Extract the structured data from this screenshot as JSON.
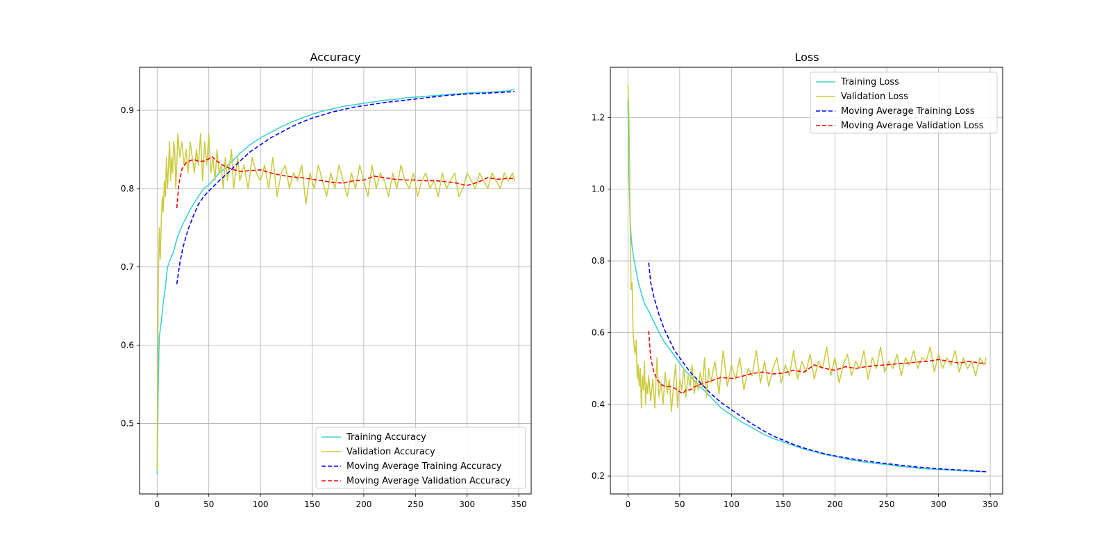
{
  "chart_data": [
    {
      "type": "line",
      "title": "Accuracy",
      "xlabel": "",
      "ylabel": "",
      "xlim": [
        -17,
        362
      ],
      "ylim": [
        0.41,
        0.955
      ],
      "xticks": [
        0,
        50,
        100,
        150,
        200,
        250,
        300,
        350
      ],
      "xtick_labels": [
        "0",
        "50",
        "100",
        "150",
        "200",
        "250",
        "300",
        "350"
      ],
      "yticks": [
        0.5,
        0.6,
        0.7,
        0.8,
        0.9
      ],
      "ytick_labels": [
        "0.5",
        "0.6",
        "0.7",
        "0.8",
        "0.9"
      ],
      "grid": true,
      "legend_position": "lower-right",
      "series": [
        {
          "name": "Training Accuracy",
          "color": "#40d0d0",
          "dash": "solid",
          "x": [
            0,
            1,
            2,
            4,
            6,
            8,
            10,
            13,
            16,
            20,
            25,
            30,
            35,
            40,
            45,
            50,
            55,
            60,
            65,
            70,
            75,
            80,
            90,
            100,
            110,
            120,
            130,
            140,
            150,
            160,
            170,
            180,
            190,
            200,
            210,
            220,
            230,
            240,
            250,
            260,
            270,
            280,
            290,
            300,
            310,
            320,
            330,
            340,
            346
          ],
          "y": [
            0.435,
            0.54,
            0.61,
            0.63,
            0.655,
            0.675,
            0.7,
            0.71,
            0.72,
            0.74,
            0.755,
            0.768,
            0.78,
            0.79,
            0.8,
            0.805,
            0.812,
            0.82,
            0.825,
            0.832,
            0.838,
            0.845,
            0.856,
            0.865,
            0.872,
            0.879,
            0.885,
            0.89,
            0.895,
            0.899,
            0.902,
            0.905,
            0.907,
            0.909,
            0.911,
            0.913,
            0.914,
            0.916,
            0.917,
            0.918,
            0.919,
            0.92,
            0.921,
            0.922,
            0.923,
            0.923,
            0.924,
            0.925,
            0.927
          ]
        },
        {
          "name": "Validation Accuracy",
          "color": "#cccc44",
          "dash": "solid",
          "x": [
            0,
            1,
            2,
            3,
            4,
            5,
            6,
            7,
            8,
            9,
            10,
            11,
            12,
            13,
            14,
            15,
            16,
            17,
            18,
            19,
            20,
            22,
            24,
            26,
            28,
            30,
            32,
            34,
            36,
            38,
            40,
            42,
            44,
            46,
            48,
            50,
            52,
            54,
            56,
            58,
            60,
            62,
            64,
            66,
            68,
            70,
            72,
            74,
            76,
            78,
            80,
            84,
            88,
            92,
            96,
            100,
            104,
            108,
            112,
            116,
            120,
            124,
            128,
            132,
            136,
            140,
            144,
            148,
            152,
            156,
            160,
            164,
            168,
            172,
            176,
            180,
            184,
            188,
            192,
            196,
            200,
            204,
            208,
            212,
            216,
            220,
            224,
            228,
            232,
            236,
            240,
            244,
            248,
            252,
            256,
            260,
            264,
            268,
            272,
            276,
            280,
            284,
            288,
            292,
            296,
            300,
            304,
            308,
            312,
            316,
            320,
            324,
            328,
            332,
            336,
            340,
            344,
            346
          ],
          "y": [
            0.44,
            0.66,
            0.75,
            0.71,
            0.76,
            0.79,
            0.77,
            0.81,
            0.79,
            0.84,
            0.8,
            0.83,
            0.86,
            0.81,
            0.84,
            0.82,
            0.86,
            0.85,
            0.8,
            0.83,
            0.87,
            0.84,
            0.86,
            0.83,
            0.85,
            0.82,
            0.86,
            0.84,
            0.82,
            0.85,
            0.83,
            0.87,
            0.81,
            0.86,
            0.83,
            0.87,
            0.82,
            0.84,
            0.81,
            0.85,
            0.82,
            0.83,
            0.8,
            0.84,
            0.81,
            0.83,
            0.85,
            0.8,
            0.82,
            0.84,
            0.81,
            0.83,
            0.8,
            0.84,
            0.82,
            0.81,
            0.83,
            0.8,
            0.84,
            0.79,
            0.82,
            0.83,
            0.8,
            0.82,
            0.81,
            0.83,
            0.78,
            0.82,
            0.8,
            0.83,
            0.81,
            0.79,
            0.82,
            0.8,
            0.83,
            0.81,
            0.79,
            0.82,
            0.8,
            0.83,
            0.81,
            0.79,
            0.83,
            0.8,
            0.82,
            0.81,
            0.79,
            0.82,
            0.8,
            0.83,
            0.81,
            0.8,
            0.82,
            0.79,
            0.81,
            0.82,
            0.8,
            0.81,
            0.79,
            0.82,
            0.8,
            0.81,
            0.82,
            0.79,
            0.8,
            0.82,
            0.81,
            0.8,
            0.82,
            0.81,
            0.8,
            0.82,
            0.81,
            0.8,
            0.82,
            0.81,
            0.82,
            0.81
          ]
        },
        {
          "name": "Moving Average Training Accuracy",
          "color": "#0000ff",
          "dash": "dashed",
          "x": [
            19,
            22,
            25,
            30,
            35,
            40,
            45,
            50,
            60,
            70,
            80,
            90,
            100,
            110,
            120,
            130,
            140,
            150,
            160,
            170,
            180,
            190,
            200,
            220,
            240,
            260,
            280,
            300,
            320,
            346
          ],
          "y": [
            0.678,
            0.705,
            0.725,
            0.748,
            0.765,
            0.78,
            0.79,
            0.797,
            0.81,
            0.822,
            0.835,
            0.847,
            0.856,
            0.865,
            0.872,
            0.879,
            0.885,
            0.89,
            0.894,
            0.898,
            0.901,
            0.904,
            0.906,
            0.91,
            0.913,
            0.916,
            0.919,
            0.921,
            0.922,
            0.924
          ]
        },
        {
          "name": "Moving Average Validation Accuracy",
          "color": "#ff0000",
          "dash": "dashed",
          "x": [
            19,
            21,
            24,
            28,
            32,
            36,
            40,
            45,
            50,
            53,
            56,
            60,
            65,
            70,
            75,
            80,
            90,
            100,
            110,
            120,
            130,
            140,
            150,
            160,
            170,
            180,
            190,
            200,
            210,
            220,
            230,
            240,
            250,
            260,
            270,
            280,
            290,
            300,
            310,
            320,
            330,
            340,
            346
          ],
          "y": [
            0.775,
            0.805,
            0.825,
            0.833,
            0.836,
            0.837,
            0.835,
            0.835,
            0.838,
            0.841,
            0.837,
            0.833,
            0.829,
            0.826,
            0.824,
            0.822,
            0.823,
            0.824,
            0.82,
            0.817,
            0.815,
            0.814,
            0.812,
            0.81,
            0.808,
            0.807,
            0.81,
            0.811,
            0.816,
            0.814,
            0.812,
            0.811,
            0.811,
            0.81,
            0.81,
            0.809,
            0.807,
            0.804,
            0.808,
            0.814,
            0.812,
            0.813,
            0.813
          ]
        }
      ]
    },
    {
      "type": "line",
      "title": "Loss",
      "xlabel": "",
      "ylabel": "",
      "xlim": [
        -17,
        362
      ],
      "ylim": [
        0.15,
        1.34
      ],
      "xticks": [
        0,
        50,
        100,
        150,
        200,
        250,
        300,
        350
      ],
      "xtick_labels": [
        "0",
        "50",
        "100",
        "150",
        "200",
        "250",
        "300",
        "350"
      ],
      "yticks": [
        0.2,
        0.4,
        0.6,
        0.8,
        1.0,
        1.2
      ],
      "ytick_labels": [
        "0.2",
        "0.4",
        "0.6",
        "0.8",
        "1.0",
        "1.2"
      ],
      "grid": true,
      "legend_position": "upper-right",
      "series": [
        {
          "name": "Training Loss",
          "color": "#40d0d0",
          "dash": "solid",
          "x": [
            0,
            1,
            2,
            3,
            4,
            6,
            8,
            10,
            13,
            16,
            20,
            25,
            30,
            35,
            40,
            45,
            50,
            55,
            60,
            65,
            70,
            75,
            80,
            90,
            100,
            110,
            120,
            130,
            140,
            150,
            160,
            170,
            180,
            190,
            200,
            210,
            220,
            230,
            240,
            250,
            260,
            270,
            280,
            290,
            300,
            310,
            320,
            330,
            340,
            346
          ],
          "y": [
            1.25,
            1.05,
            0.93,
            0.87,
            0.84,
            0.8,
            0.77,
            0.74,
            0.71,
            0.68,
            0.66,
            0.63,
            0.6,
            0.575,
            0.555,
            0.535,
            0.515,
            0.495,
            0.48,
            0.462,
            0.448,
            0.435,
            0.42,
            0.39,
            0.37,
            0.35,
            0.335,
            0.318,
            0.305,
            0.295,
            0.285,
            0.275,
            0.268,
            0.26,
            0.255,
            0.248,
            0.243,
            0.238,
            0.235,
            0.232,
            0.228,
            0.225,
            0.222,
            0.22,
            0.218,
            0.217,
            0.215,
            0.214,
            0.213,
            0.212
          ]
        },
        {
          "name": "Validation Loss",
          "color": "#cccc44",
          "dash": "solid",
          "x": [
            0,
            1,
            2,
            3,
            4,
            5,
            6,
            7,
            8,
            9,
            10,
            11,
            12,
            13,
            14,
            15,
            16,
            17,
            18,
            19,
            20,
            22,
            24,
            26,
            28,
            30,
            32,
            34,
            36,
            38,
            40,
            42,
            44,
            46,
            48,
            50,
            52,
            54,
            56,
            58,
            60,
            62,
            64,
            66,
            68,
            70,
            72,
            74,
            76,
            78,
            80,
            84,
            88,
            92,
            96,
            100,
            104,
            108,
            112,
            116,
            120,
            124,
            128,
            132,
            136,
            140,
            144,
            148,
            152,
            156,
            160,
            164,
            168,
            172,
            176,
            180,
            184,
            188,
            192,
            196,
            200,
            204,
            208,
            212,
            216,
            220,
            224,
            228,
            232,
            236,
            240,
            244,
            248,
            252,
            256,
            260,
            264,
            268,
            272,
            276,
            280,
            284,
            288,
            292,
            296,
            300,
            304,
            308,
            312,
            316,
            320,
            324,
            328,
            332,
            336,
            340,
            344,
            346
          ],
          "y": [
            1.29,
            1.2,
            0.95,
            0.72,
            0.74,
            0.6,
            0.56,
            0.54,
            0.58,
            0.47,
            0.51,
            0.45,
            0.5,
            0.39,
            0.48,
            0.44,
            0.52,
            0.4,
            0.46,
            0.43,
            0.48,
            0.41,
            0.47,
            0.39,
            0.53,
            0.42,
            0.46,
            0.4,
            0.49,
            0.43,
            0.47,
            0.38,
            0.45,
            0.51,
            0.39,
            0.47,
            0.44,
            0.5,
            0.42,
            0.48,
            0.45,
            0.51,
            0.43,
            0.47,
            0.44,
            0.49,
            0.45,
            0.53,
            0.42,
            0.5,
            0.46,
            0.52,
            0.43,
            0.55,
            0.45,
            0.51,
            0.47,
            0.53,
            0.44,
            0.5,
            0.48,
            0.55,
            0.46,
            0.52,
            0.45,
            0.5,
            0.53,
            0.46,
            0.51,
            0.48,
            0.55,
            0.47,
            0.52,
            0.49,
            0.54,
            0.47,
            0.52,
            0.5,
            0.56,
            0.48,
            0.53,
            0.46,
            0.51,
            0.54,
            0.48,
            0.52,
            0.5,
            0.55,
            0.47,
            0.53,
            0.5,
            0.56,
            0.49,
            0.52,
            0.5,
            0.54,
            0.48,
            0.53,
            0.51,
            0.55,
            0.5,
            0.53,
            0.52,
            0.56,
            0.49,
            0.54,
            0.5,
            0.53,
            0.51,
            0.55,
            0.49,
            0.53,
            0.5,
            0.52,
            0.48,
            0.53,
            0.51,
            0.53
          ]
        },
        {
          "name": "Moving Average Training Loss",
          "color": "#0000ff",
          "dash": "dashed",
          "x": [
            20,
            22,
            25,
            30,
            35,
            40,
            45,
            50,
            60,
            70,
            80,
            90,
            100,
            110,
            120,
            130,
            140,
            150,
            160,
            170,
            180,
            190,
            200,
            220,
            240,
            260,
            280,
            300,
            320,
            346
          ],
          "y": [
            0.795,
            0.74,
            0.7,
            0.65,
            0.61,
            0.58,
            0.55,
            0.53,
            0.49,
            0.46,
            0.43,
            0.405,
            0.385,
            0.365,
            0.345,
            0.328,
            0.312,
            0.3,
            0.288,
            0.278,
            0.27,
            0.262,
            0.256,
            0.246,
            0.238,
            0.231,
            0.225,
            0.22,
            0.217,
            0.212
          ]
        },
        {
          "name": "Moving Average Validation Loss",
          "color": "#ff0000",
          "dash": "dashed",
          "x": [
            20,
            22,
            25,
            28,
            32,
            36,
            40,
            45,
            50,
            53,
            56,
            60,
            65,
            70,
            75,
            80,
            90,
            100,
            110,
            120,
            130,
            140,
            150,
            160,
            170,
            180,
            190,
            200,
            210,
            220,
            230,
            240,
            250,
            260,
            270,
            280,
            290,
            300,
            310,
            320,
            330,
            340,
            346
          ],
          "y": [
            0.605,
            0.53,
            0.49,
            0.47,
            0.455,
            0.45,
            0.45,
            0.445,
            0.435,
            0.43,
            0.44,
            0.44,
            0.45,
            0.455,
            0.46,
            0.465,
            0.475,
            0.472,
            0.478,
            0.486,
            0.49,
            0.485,
            0.487,
            0.495,
            0.49,
            0.51,
            0.5,
            0.495,
            0.505,
            0.5,
            0.505,
            0.508,
            0.51,
            0.513,
            0.515,
            0.518,
            0.52,
            0.525,
            0.52,
            0.515,
            0.52,
            0.515,
            0.515
          ]
        }
      ]
    }
  ]
}
